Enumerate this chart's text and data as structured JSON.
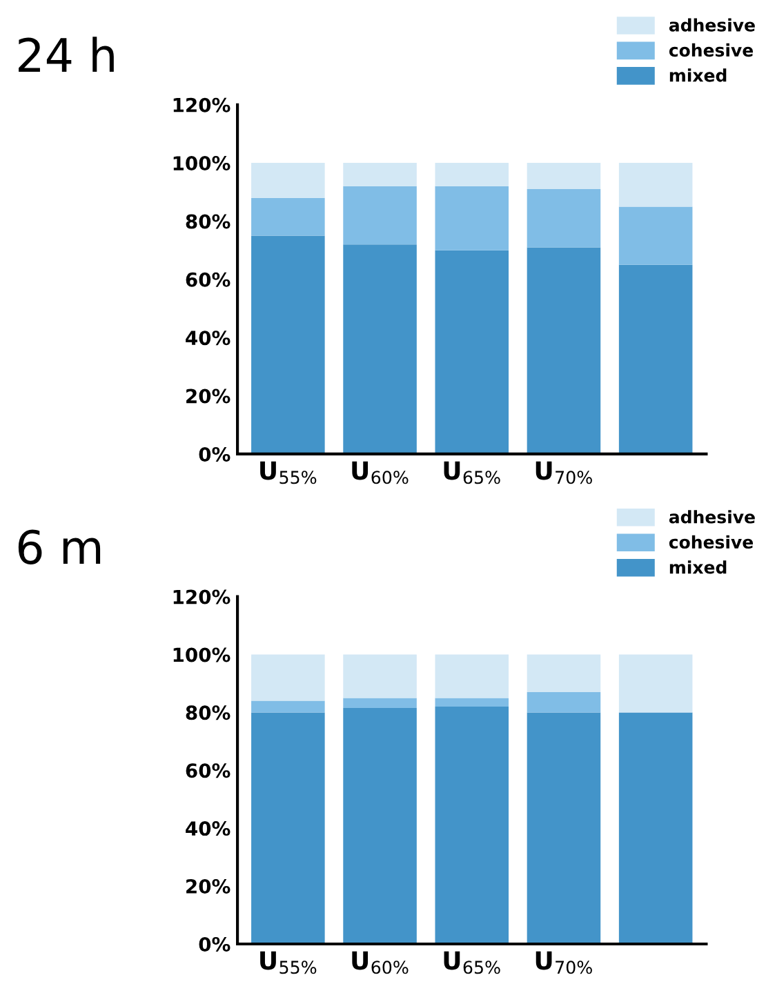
{
  "chart_data": [
    {
      "type": "bar",
      "title": "24 h",
      "stacked": true,
      "categories": [
        "U$_{55%}$",
        "U$_{60%}$",
        "U$_{65%}$",
        "U$_{70%}$",
        null
      ],
      "series": [
        {
          "name": "mixed",
          "color": "#4394c9",
          "values": [
            75,
            72,
            70,
            71,
            65
          ]
        },
        {
          "name": "cohesive",
          "color": "#80bde6",
          "values": [
            13,
            20,
            22,
            20,
            20
          ]
        },
        {
          "name": "adhesive",
          "color": "#d3e8f5",
          "values": [
            12,
            8,
            8,
            9,
            15
          ]
        }
      ],
      "ylim": [
        0,
        120
      ],
      "yticks": [
        {
          "value": 0,
          "label": "0%"
        },
        {
          "value": 20,
          "label": "20%"
        },
        {
          "value": 40,
          "label": "40%"
        },
        {
          "value": 60,
          "label": "60%"
        },
        {
          "value": 80,
          "label": "80%"
        },
        {
          "value": 100,
          "label": "100%"
        },
        {
          "value": 120,
          "label": "120%"
        }
      ],
      "grid": false,
      "legend": "top right"
    },
    {
      "type": "bar",
      "title": "6 m",
      "stacked": true,
      "categories": [
        "U$_{55%}$",
        "U$_{60%}$",
        "U$_{65%}$",
        "U$_{70%}$",
        null
      ],
      "series": [
        {
          "name": "mixed",
          "color": "#4394c9",
          "values": [
            80,
            81.5,
            82,
            80,
            80
          ]
        },
        {
          "name": "cohesive",
          "color": "#80bde6",
          "values": [
            4,
            3.5,
            3,
            7,
            0
          ]
        },
        {
          "name": "adhesive",
          "color": "#d3e8f5",
          "values": [
            16,
            15,
            15,
            13,
            20
          ]
        }
      ],
      "ylim": [
        0,
        120
      ],
      "yticks": [
        {
          "value": 0,
          "label": "0%"
        },
        {
          "value": 20,
          "label": "20%"
        },
        {
          "value": 40,
          "label": "40%"
        },
        {
          "value": 60,
          "label": "60%"
        },
        {
          "value": 80,
          "label": "80%"
        },
        {
          "value": 100,
          "label": "100%"
        },
        {
          "value": 120,
          "label": "120%"
        }
      ],
      "grid": false,
      "legend": "top right"
    }
  ]
}
